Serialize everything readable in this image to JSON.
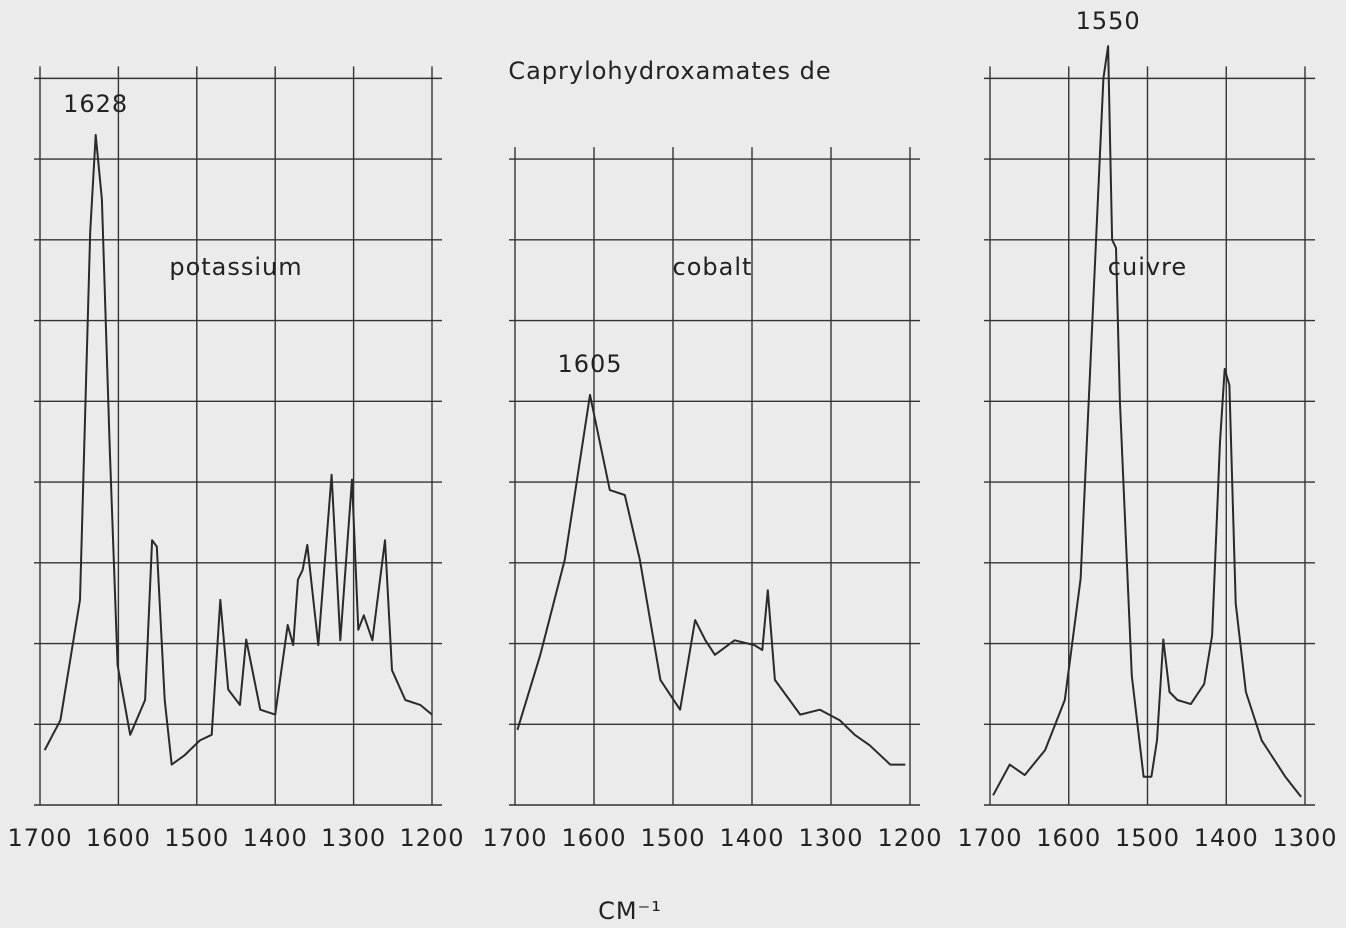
{
  "title": "Caprylohydroxamates   de",
  "x_label": "CM⁻¹",
  "chart_data": [
    {
      "type": "line",
      "name": "potassium",
      "peak_label": "1628",
      "xlim": [
        1700,
        1200
      ],
      "ylim": [
        0,
        9.5
      ],
      "xticks": [
        1700,
        1600,
        1500,
        1400,
        1300,
        1200
      ],
      "yticks": [
        0,
        1,
        2,
        3,
        4,
        5,
        6,
        7,
        8,
        9
      ],
      "grid": true,
      "color": "#2a2a2a",
      "x": [
        1694,
        1674,
        1649,
        1636,
        1629,
        1621,
        1611,
        1601,
        1585,
        1566,
        1557,
        1551,
        1541,
        1532,
        1515,
        1496,
        1481,
        1470,
        1460,
        1445,
        1437,
        1419,
        1400,
        1384,
        1377,
        1371,
        1365,
        1359,
        1345,
        1328,
        1317,
        1302,
        1294,
        1287,
        1276,
        1260,
        1251,
        1234,
        1215,
        1200
      ],
      "values": [
        0.68,
        1.05,
        2.54,
        7.1,
        8.3,
        7.5,
        4.4,
        1.73,
        0.87,
        1.3,
        3.28,
        3.2,
        1.3,
        0.5,
        0.62,
        0.8,
        0.87,
        2.54,
        1.43,
        1.24,
        2.05,
        1.18,
        1.12,
        2.23,
        1.98,
        2.79,
        2.91,
        3.22,
        1.98,
        4.09,
        2.04,
        4.03,
        2.17,
        2.35,
        2.04,
        3.28,
        1.67,
        1.3,
        1.24,
        1.12
      ]
    },
    {
      "type": "line",
      "name": "cobalt",
      "peak_label": "1605",
      "xlim": [
        1700,
        1200
      ],
      "ylim": [
        0,
        9.5
      ],
      "xticks": [
        1700,
        1600,
        1500,
        1400,
        1300,
        1200
      ],
      "yticks": [
        0,
        1,
        2,
        3,
        4,
        5,
        6,
        7,
        8
      ],
      "grid": true,
      "color": "#2a2a2a",
      "x": [
        1697,
        1668,
        1637,
        1605,
        1596,
        1580,
        1561,
        1542,
        1516,
        1491,
        1472,
        1459,
        1447,
        1422,
        1397,
        1387,
        1380,
        1371,
        1339,
        1314,
        1289,
        1270,
        1251,
        1225,
        1206
      ],
      "values": [
        0.93,
        1.86,
        3.04,
        5.08,
        4.65,
        3.9,
        3.84,
        3.04,
        1.55,
        1.18,
        2.29,
        2.04,
        1.86,
        2.04,
        1.98,
        1.92,
        2.66,
        1.55,
        1.12,
        1.18,
        1.05,
        0.87,
        0.74,
        0.5,
        0.5
      ]
    },
    {
      "type": "line",
      "name": "cuivre",
      "peak_label": "1550",
      "xlim": [
        1700,
        1300
      ],
      "ylim": [
        0,
        9.5
      ],
      "xticks": [
        1700,
        1600,
        1500,
        1400,
        1300
      ],
      "yticks": [
        0,
        1,
        2,
        3,
        4,
        5,
        6,
        7,
        8,
        9
      ],
      "grid": true,
      "color": "#2a2a2a",
      "x": [
        1696,
        1675,
        1656,
        1630,
        1605,
        1585,
        1570,
        1556,
        1550,
        1545,
        1540,
        1535,
        1520,
        1505,
        1495,
        1488,
        1480,
        1472,
        1462,
        1445,
        1428,
        1418,
        1408,
        1402,
        1396,
        1388,
        1375,
        1355,
        1325,
        1305
      ],
      "values": [
        0.12,
        0.5,
        0.37,
        0.68,
        1.3,
        2.8,
        6.0,
        9.0,
        9.4,
        7.0,
        6.9,
        5.0,
        1.6,
        0.35,
        0.35,
        0.8,
        2.05,
        1.4,
        1.3,
        1.25,
        1.5,
        2.1,
        4.5,
        5.4,
        5.2,
        2.5,
        1.4,
        0.8,
        0.35,
        0.1
      ]
    }
  ]
}
